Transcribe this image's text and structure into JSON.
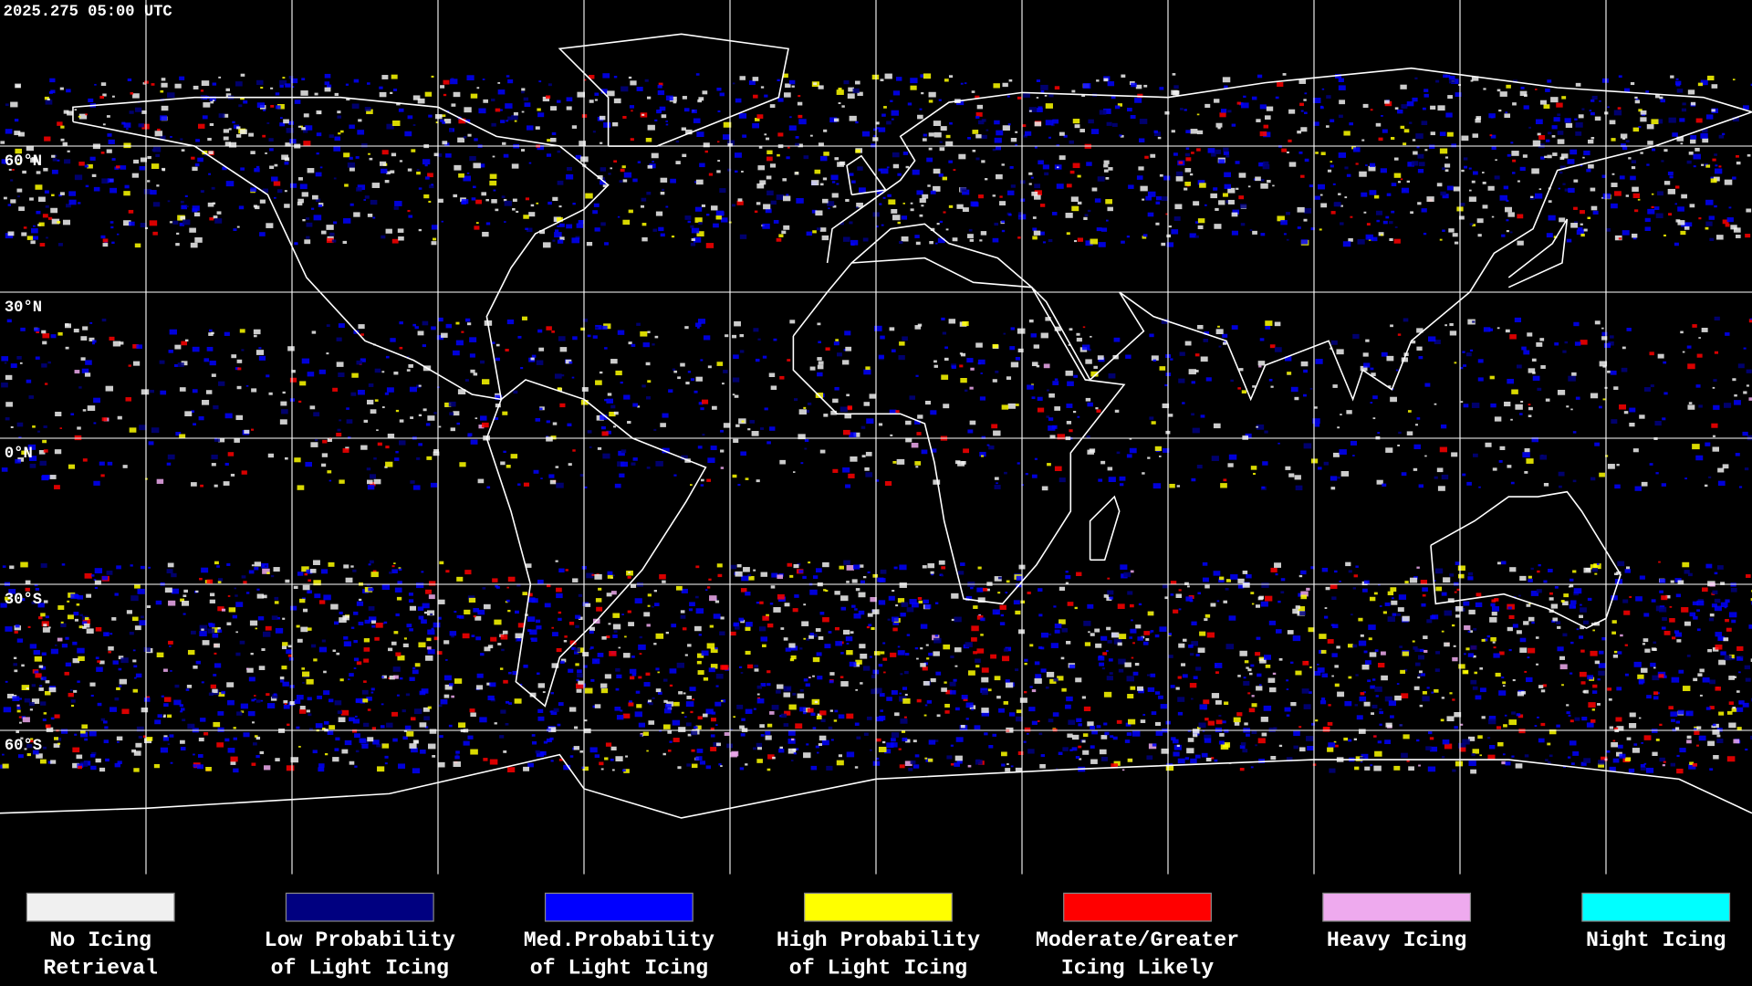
{
  "header": {
    "timestamp": "2025.275 05:00 UTC"
  },
  "latitude_labels": [
    "60°N",
    "30°N",
    "0°N",
    "30°S",
    "60°S"
  ],
  "legend": [
    {
      "color": "#f0f0f0",
      "label": [
        "No Icing",
        "Retrieval"
      ]
    },
    {
      "color": "#000080",
      "label": [
        "Low Probability",
        "of Light Icing"
      ]
    },
    {
      "color": "#0000ff",
      "label": [
        "Med.Probability",
        "of Light Icing"
      ]
    },
    {
      "color": "#ffff00",
      "label": [
        "High Probability",
        "of Light Icing"
      ]
    },
    {
      "color": "#ff0000",
      "label": [
        "Moderate/Greater",
        "Icing Likely"
      ]
    },
    {
      "color": "#eeaaee",
      "label": [
        "Heavy Icing"
      ]
    },
    {
      "color": "#00ffff",
      "label": [
        "Night Icing"
      ]
    }
  ]
}
